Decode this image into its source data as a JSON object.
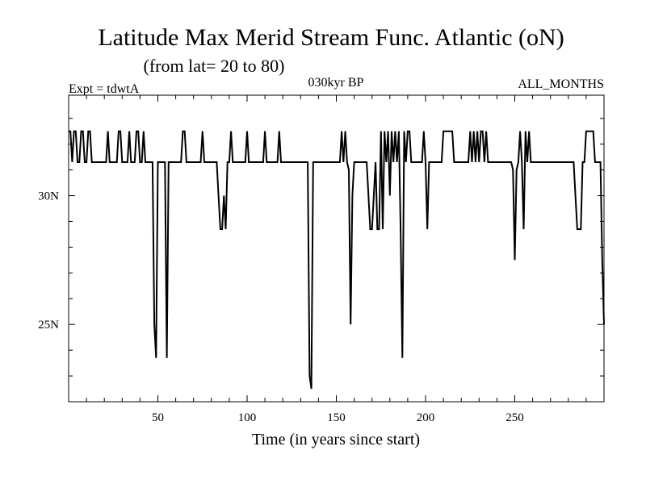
{
  "chart_data": {
    "type": "line",
    "title": "Latitude Max Merid Stream Func. Atlantic (oN)",
    "subtitle": "(from lat= 20 to 80)",
    "experiment": "Expt = tdwtA",
    "period": "030kyr BP",
    "months": "ALL_MONTHS",
    "xlabel": "Time (in years since start)",
    "ylabel": "",
    "xlim": [
      0,
      300
    ],
    "ylim": [
      22,
      33.9
    ],
    "x_ticks": [
      50,
      100,
      150,
      200,
      250
    ],
    "y_ticks": [
      {
        "value": 30,
        "label": "30N"
      },
      {
        "value": 25,
        "label": "25N"
      }
    ],
    "series": [
      {
        "points": [
          [
            0,
            32.5
          ],
          [
            1,
            32.5
          ],
          [
            2,
            31.3
          ],
          [
            3,
            32.5
          ],
          [
            4,
            32.5
          ],
          [
            5,
            31.3
          ],
          [
            6,
            31.3
          ],
          [
            7,
            32.5
          ],
          [
            8,
            32.5
          ],
          [
            9,
            31.3
          ],
          [
            10,
            31.3
          ],
          [
            11,
            32.5
          ],
          [
            12,
            32.5
          ],
          [
            13,
            31.3
          ],
          [
            14,
            31.3
          ],
          [
            15,
            31.3
          ],
          [
            16,
            31.3
          ],
          [
            17,
            31.3
          ],
          [
            18,
            31.3
          ],
          [
            19,
            31.3
          ],
          [
            20,
            31.3
          ],
          [
            21,
            31.3
          ],
          [
            22,
            32.5
          ],
          [
            23,
            31.3
          ],
          [
            24,
            31.3
          ],
          [
            25,
            31.3
          ],
          [
            26,
            31.3
          ],
          [
            27,
            31.3
          ],
          [
            28,
            32.5
          ],
          [
            29,
            32.5
          ],
          [
            30,
            31.3
          ],
          [
            31,
            31.3
          ],
          [
            32,
            31.3
          ],
          [
            33,
            31.3
          ],
          [
            34,
            32.5
          ],
          [
            35,
            31.3
          ],
          [
            36,
            31.3
          ],
          [
            37,
            31.3
          ],
          [
            38,
            32.5
          ],
          [
            39,
            32.5
          ],
          [
            40,
            31.3
          ],
          [
            41,
            31.3
          ],
          [
            42,
            32.5
          ],
          [
            43,
            31.3
          ],
          [
            44,
            31.3
          ],
          [
            45,
            31.3
          ],
          [
            46,
            31.3
          ],
          [
            47,
            31.3
          ],
          [
            48,
            25
          ],
          [
            49,
            23.7
          ],
          [
            50,
            31.3
          ],
          [
            51,
            31.3
          ],
          [
            52,
            31.3
          ],
          [
            53,
            31.3
          ],
          [
            54,
            31.3
          ],
          [
            55,
            23.7
          ],
          [
            56,
            31.3
          ],
          [
            57,
            31.3
          ],
          [
            58,
            31.3
          ],
          [
            59,
            31.3
          ],
          [
            60,
            31.3
          ],
          [
            61,
            31.3
          ],
          [
            62,
            31.3
          ],
          [
            63,
            31.3
          ],
          [
            64,
            32.5
          ],
          [
            65,
            32.5
          ],
          [
            66,
            31.3
          ],
          [
            67,
            31.3
          ],
          [
            68,
            31.3
          ],
          [
            69,
            31.3
          ],
          [
            70,
            31.3
          ],
          [
            71,
            31.3
          ],
          [
            72,
            31.3
          ],
          [
            73,
            31.3
          ],
          [
            74,
            31.3
          ],
          [
            75,
            32.5
          ],
          [
            76,
            31.3
          ],
          [
            77,
            31.3
          ],
          [
            78,
            31.3
          ],
          [
            79,
            31.3
          ],
          [
            80,
            31.3
          ],
          [
            81,
            31.3
          ],
          [
            82,
            31.3
          ],
          [
            83,
            31.3
          ],
          [
            84,
            30
          ],
          [
            85,
            28.7
          ],
          [
            86,
            28.7
          ],
          [
            87,
            30
          ],
          [
            88,
            28.7
          ],
          [
            89,
            31.3
          ],
          [
            90,
            31.3
          ],
          [
            91,
            32.5
          ],
          [
            92,
            31.3
          ],
          [
            93,
            31.3
          ],
          [
            94,
            31.3
          ],
          [
            95,
            31.3
          ],
          [
            96,
            31.3
          ],
          [
            97,
            31.3
          ],
          [
            98,
            31.3
          ],
          [
            99,
            31.3
          ],
          [
            100,
            32.5
          ],
          [
            101,
            31.3
          ],
          [
            102,
            31.3
          ],
          [
            103,
            31.3
          ],
          [
            104,
            31.3
          ],
          [
            105,
            31.3
          ],
          [
            106,
            31.3
          ],
          [
            107,
            31.3
          ],
          [
            108,
            31.3
          ],
          [
            109,
            31.3
          ],
          [
            110,
            32.5
          ],
          [
            111,
            31.3
          ],
          [
            112,
            31.3
          ],
          [
            113,
            31.3
          ],
          [
            114,
            31.3
          ],
          [
            115,
            31.3
          ],
          [
            116,
            31.3
          ],
          [
            117,
            31.3
          ],
          [
            118,
            32.5
          ],
          [
            119,
            31.3
          ],
          [
            120,
            31.3
          ],
          [
            121,
            31.3
          ],
          [
            122,
            31.3
          ],
          [
            123,
            31.3
          ],
          [
            124,
            31.3
          ],
          [
            125,
            31.3
          ],
          [
            126,
            31.3
          ],
          [
            127,
            31.3
          ],
          [
            128,
            31.3
          ],
          [
            129,
            31.3
          ],
          [
            130,
            31.3
          ],
          [
            131,
            31.3
          ],
          [
            132,
            31.3
          ],
          [
            133,
            31.3
          ],
          [
            134,
            31.3
          ],
          [
            135,
            23
          ],
          [
            136,
            22.5
          ],
          [
            137,
            31.3
          ],
          [
            138,
            31.3
          ],
          [
            139,
            31.3
          ],
          [
            140,
            31.3
          ],
          [
            141,
            31.3
          ],
          [
            142,
            31.3
          ],
          [
            143,
            31.3
          ],
          [
            144,
            31.3
          ],
          [
            145,
            31.3
          ],
          [
            146,
            31.3
          ],
          [
            147,
            31.3
          ],
          [
            148,
            31.3
          ],
          [
            149,
            31.3
          ],
          [
            150,
            31.3
          ],
          [
            151,
            31.3
          ],
          [
            152,
            31.3
          ],
          [
            153,
            32.5
          ],
          [
            154,
            31.3
          ],
          [
            155,
            32.5
          ],
          [
            156,
            31.3
          ],
          [
            157,
            31
          ],
          [
            158,
            25
          ],
          [
            159,
            30
          ],
          [
            160,
            31.3
          ],
          [
            161,
            31.3
          ],
          [
            162,
            31.3
          ],
          [
            163,
            31.3
          ],
          [
            164,
            31.3
          ],
          [
            165,
            31.3
          ],
          [
            166,
            31.3
          ],
          [
            167,
            31.3
          ],
          [
            168,
            30
          ],
          [
            169,
            28.7
          ],
          [
            170,
            28.7
          ],
          [
            171,
            30
          ],
          [
            172,
            31.3
          ],
          [
            173,
            28.7
          ],
          [
            174,
            28.7
          ],
          [
            175,
            32.5
          ],
          [
            176,
            28.7
          ],
          [
            177,
            32.5
          ],
          [
            178,
            31.3
          ],
          [
            179,
            32.5
          ],
          [
            180,
            30
          ],
          [
            181,
            32.5
          ],
          [
            182,
            31.3
          ],
          [
            183,
            32.5
          ],
          [
            184,
            31.3
          ],
          [
            185,
            32.5
          ],
          [
            186,
            28.7
          ],
          [
            187,
            23.7
          ],
          [
            188,
            32.5
          ],
          [
            189,
            31.3
          ],
          [
            190,
            32.5
          ],
          [
            191,
            32.5
          ],
          [
            192,
            31.3
          ],
          [
            193,
            31.3
          ],
          [
            194,
            31.3
          ],
          [
            195,
            31.3
          ],
          [
            196,
            31.3
          ],
          [
            197,
            31.3
          ],
          [
            198,
            31.3
          ],
          [
            199,
            32.5
          ],
          [
            200,
            31.3
          ],
          [
            201,
            28.7
          ],
          [
            202,
            31.3
          ],
          [
            203,
            31.3
          ],
          [
            204,
            31.3
          ],
          [
            205,
            31.3
          ],
          [
            206,
            31.3
          ],
          [
            207,
            31.3
          ],
          [
            208,
            31.3
          ],
          [
            209,
            31.3
          ],
          [
            210,
            32.5
          ],
          [
            211,
            32.5
          ],
          [
            212,
            32.5
          ],
          [
            213,
            32.5
          ],
          [
            214,
            32.5
          ],
          [
            215,
            32.5
          ],
          [
            216,
            31.3
          ],
          [
            217,
            31.3
          ],
          [
            218,
            31.3
          ],
          [
            219,
            31.3
          ],
          [
            220,
            31.3
          ],
          [
            221,
            31.3
          ],
          [
            222,
            31.3
          ],
          [
            223,
            31.3
          ],
          [
            224,
            31.3
          ],
          [
            225,
            32.5
          ],
          [
            226,
            31.3
          ],
          [
            227,
            32.5
          ],
          [
            228,
            31.3
          ],
          [
            229,
            32.5
          ],
          [
            230,
            31.3
          ],
          [
            231,
            32.5
          ],
          [
            232,
            32.5
          ],
          [
            233,
            31.3
          ],
          [
            234,
            32.5
          ],
          [
            235,
            31.3
          ],
          [
            236,
            31.3
          ],
          [
            237,
            31.3
          ],
          [
            238,
            31.3
          ],
          [
            239,
            31.3
          ],
          [
            240,
            31.3
          ],
          [
            241,
            31.3
          ],
          [
            242,
            31.3
          ],
          [
            243,
            31.3
          ],
          [
            244,
            31.3
          ],
          [
            245,
            31.3
          ],
          [
            246,
            31.3
          ],
          [
            247,
            31.3
          ],
          [
            248,
            31.3
          ],
          [
            249,
            31
          ],
          [
            250,
            27.5
          ],
          [
            251,
            31
          ],
          [
            252,
            31.3
          ],
          [
            253,
            32.5
          ],
          [
            254,
            31.3
          ],
          [
            255,
            28.7
          ],
          [
            256,
            32.5
          ],
          [
            257,
            31.3
          ],
          [
            258,
            32.5
          ],
          [
            259,
            31.3
          ],
          [
            260,
            31.3
          ],
          [
            261,
            31.3
          ],
          [
            262,
            31.3
          ],
          [
            263,
            31.3
          ],
          [
            264,
            31.3
          ],
          [
            265,
            31.3
          ],
          [
            266,
            31.3
          ],
          [
            267,
            31.3
          ],
          [
            268,
            31.3
          ],
          [
            269,
            31.3
          ],
          [
            270,
            31.3
          ],
          [
            271,
            31.3
          ],
          [
            272,
            31.3
          ],
          [
            273,
            31.3
          ],
          [
            274,
            31.3
          ],
          [
            275,
            31.3
          ],
          [
            276,
            31.3
          ],
          [
            277,
            31.3
          ],
          [
            278,
            31.3
          ],
          [
            279,
            31.3
          ],
          [
            280,
            31.3
          ],
          [
            281,
            31.3
          ],
          [
            282,
            31.3
          ],
          [
            283,
            31.3
          ],
          [
            284,
            30
          ],
          [
            285,
            28.7
          ],
          [
            286,
            28.7
          ],
          [
            287,
            28.7
          ],
          [
            288,
            31.3
          ],
          [
            289,
            31.3
          ],
          [
            290,
            32.5
          ],
          [
            291,
            32.5
          ],
          [
            292,
            32.5
          ],
          [
            293,
            32.5
          ],
          [
            294,
            32.5
          ],
          [
            295,
            31.3
          ],
          [
            296,
            31.3
          ],
          [
            297,
            31.3
          ],
          [
            298,
            31.3
          ],
          [
            299,
            27.5
          ],
          [
            300,
            25
          ]
        ]
      }
    ]
  }
}
